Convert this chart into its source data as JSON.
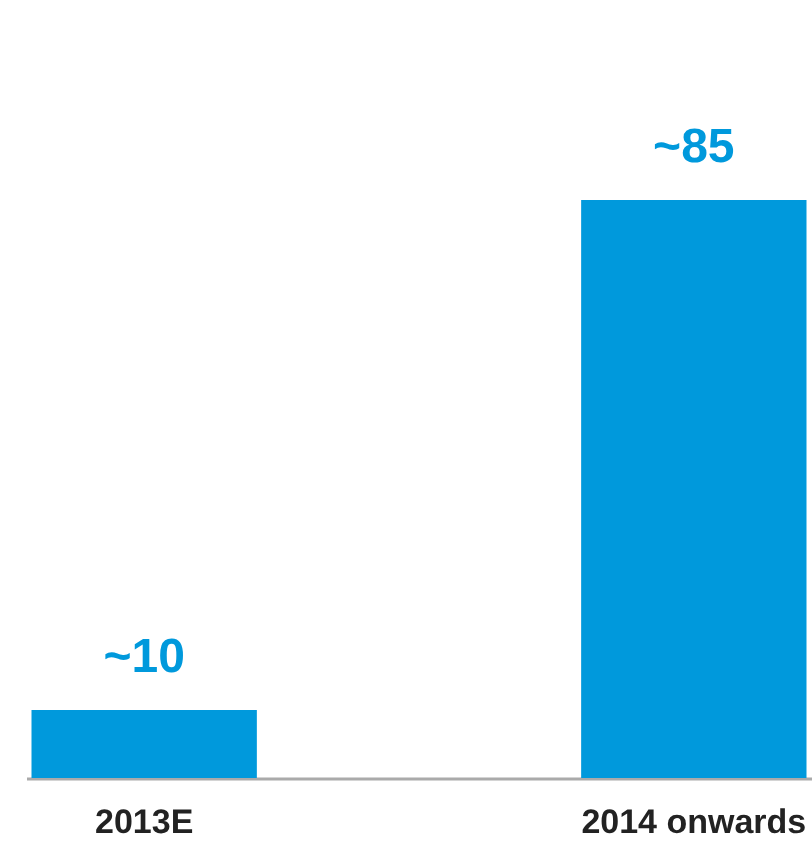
{
  "chart_data": {
    "type": "bar",
    "categories": [
      "2013E",
      "2014 onwards"
    ],
    "values": [
      10,
      85
    ],
    "value_labels": [
      "~10",
      "~85"
    ],
    "color": "#0099dc",
    "grid": false,
    "tick_labels": "x"
  }
}
